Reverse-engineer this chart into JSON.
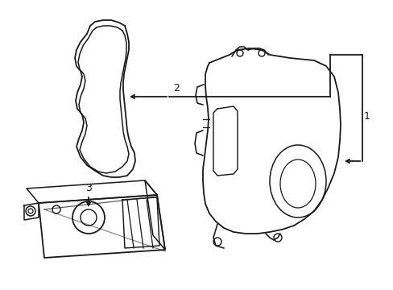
{
  "background_color": "#ffffff",
  "line_color": "#1a1a1a",
  "line_width": 1.3,
  "fig_width": 4.89,
  "fig_height": 3.6,
  "dpi": 100
}
